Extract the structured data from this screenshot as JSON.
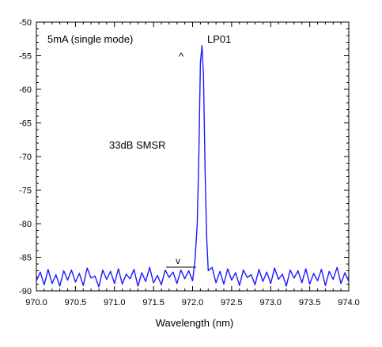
{
  "chart_data": {
    "type": "line",
    "title": "",
    "xlabel": "Wavelength (nm)",
    "ylabel": "",
    "xlim": [
      970.0,
      974.0
    ],
    "ylim": [
      -90,
      -50
    ],
    "x_ticks": [
      970.0,
      970.5,
      971.0,
      971.5,
      972.0,
      972.5,
      973.0,
      973.5,
      974.0
    ],
    "x_tick_labels": [
      "970.0",
      "970.5",
      "971.0",
      "971.5",
      "972.0",
      "972.5",
      "973.0",
      "973.5",
      "974.0"
    ],
    "y_ticks": [
      -50,
      -55,
      -60,
      -65,
      -70,
      -75,
      -80,
      -85,
      -90
    ],
    "y_tick_labels": [
      "-50",
      "-55",
      "-60",
      "-65",
      "-70",
      "-75",
      "-80",
      "-85",
      "-90"
    ],
    "grid": false,
    "legend": "none",
    "series_color": "#1a1aff",
    "annotations": {
      "condition": "5mA (single mode)",
      "peak_label": "LP01",
      "smsr": "33dB SMSR",
      "up_marker": "^",
      "down_marker": "v"
    },
    "series": [
      {
        "x": [
          970.0,
          970.05,
          970.1,
          970.15,
          970.2,
          970.25,
          970.3,
          970.35,
          970.4,
          970.45,
          970.5,
          970.55,
          970.6,
          970.65,
          970.7,
          970.75,
          970.8,
          970.85,
          970.9,
          970.95,
          971.0,
          971.05,
          971.1,
          971.15,
          971.2,
          971.25,
          971.3,
          971.35,
          971.4,
          971.45,
          971.5,
          971.55,
          971.6,
          971.65,
          971.7,
          971.75,
          971.8,
          971.85,
          971.9,
          971.95,
          972.0,
          972.03,
          972.06,
          972.08,
          972.1,
          972.12,
          972.14,
          972.16,
          972.18,
          972.2,
          972.25,
          972.3,
          972.35,
          972.4,
          972.45,
          972.5,
          972.55,
          972.6,
          972.65,
          972.7,
          972.75,
          972.8,
          972.85,
          972.9,
          972.95,
          973.0,
          973.05,
          973.1,
          973.15,
          973.2,
          973.25,
          973.3,
          973.35,
          973.4,
          973.45,
          973.5,
          973.55,
          973.6,
          973.65,
          973.7,
          973.75,
          973.8,
          973.85,
          973.9,
          973.95,
          974.0
        ],
        "values": [
          -88.5,
          -87.2,
          -89.1,
          -86.8,
          -88.9,
          -87.6,
          -89.3,
          -87.0,
          -88.4,
          -86.9,
          -88.7,
          -87.4,
          -89.2,
          -86.6,
          -88.1,
          -87.8,
          -89.4,
          -86.9,
          -88.3,
          -87.1,
          -88.9,
          -86.7,
          -89.0,
          -87.5,
          -88.2,
          -86.8,
          -89.3,
          -87.3,
          -88.6,
          -86.5,
          -88.8,
          -87.7,
          -89.1,
          -86.9,
          -88.0,
          -87.2,
          -88.9,
          -86.9,
          -88.2,
          -87.0,
          -88.5,
          -85.5,
          -80.0,
          -70.0,
          -56.0,
          -53.5,
          -58.0,
          -72.0,
          -82.0,
          -87.0,
          -86.5,
          -88.8,
          -87.1,
          -89.0,
          -86.7,
          -88.4,
          -87.3,
          -89.2,
          -86.9,
          -88.0,
          -87.6,
          -89.1,
          -86.8,
          -88.6,
          -87.2,
          -88.9,
          -86.6,
          -88.3,
          -87.5,
          -89.3,
          -86.9,
          -88.1,
          -87.0,
          -88.8,
          -86.7,
          -89.0,
          -87.4,
          -88.5,
          -86.8,
          -89.2,
          -87.1,
          -88.3,
          -86.5,
          -88.9,
          -87.3,
          -88.6
        ]
      }
    ]
  }
}
